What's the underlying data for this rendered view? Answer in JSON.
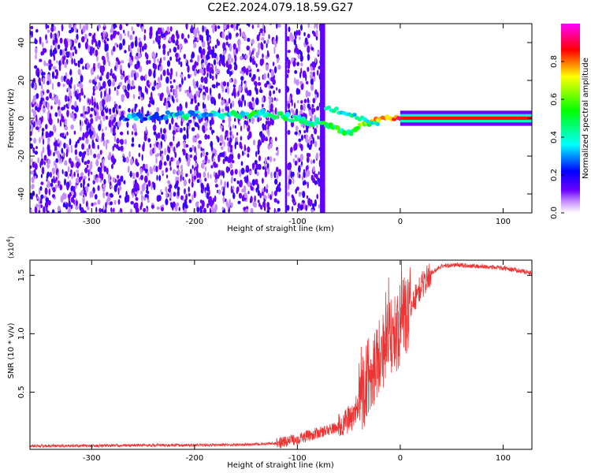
{
  "title": "C2E2.2024.079.18.59.G27",
  "chart_data": [
    {
      "type": "heatmap",
      "xlabel": "Height of straight line (km)",
      "ylabel": "Frequency (Hz)",
      "xlim": [
        -360,
        128
      ],
      "ylim": [
        -50,
        50
      ],
      "xticks": [
        -300,
        -200,
        -100,
        0,
        100
      ],
      "yticks": [
        -40,
        -20,
        0,
        20,
        40
      ],
      "colorbar": {
        "label": "Normalized spectral amplitude",
        "range": [
          0,
          1
        ],
        "ticks": [
          "0.0",
          "0.2",
          "0.4",
          "0.6",
          "0.8"
        ],
        "colors": [
          "#ffffff",
          "#c58cff",
          "#6a00ff",
          "#0000ff",
          "#00ffff",
          "#00ff00",
          "#ffff00",
          "#ff0000",
          "#ff00ff"
        ]
      },
      "features": {
        "noise_band_km": [
          -360,
          -75
        ],
        "noise_gap_km": [
          -117,
          -110
        ],
        "ridge": [
          {
            "x": -270,
            "freq": 0,
            "amp": 0.25
          },
          {
            "x": -230,
            "freq": 1.5,
            "amp": 0.35
          },
          {
            "x": -180,
            "freq": 2,
            "amp": 0.4
          },
          {
            "x": -130,
            "freq": 2.5,
            "amp": 0.45
          },
          {
            "x": -75,
            "freq": -3,
            "amp": 0.45
          },
          {
            "x": -50,
            "freq": -8,
            "amp": 0.5
          },
          {
            "x": -35,
            "freq": -3,
            "amp": 0.6
          },
          {
            "x": -20,
            "freq": -0.5,
            "amp": 0.75
          },
          {
            "x": 0,
            "freq": 0,
            "amp": 0.85
          },
          {
            "x": 128,
            "freq": 0,
            "amp": 0.9
          }
        ]
      }
    },
    {
      "type": "line",
      "xlabel": "Height of straight line (km)",
      "ylabel": "SNR (10 * v/v)",
      "y_multiplier": "(x10^4)",
      "xlim": [
        -360,
        128
      ],
      "ylim": [
        0.01,
        1.63
      ],
      "xticks": [
        -300,
        -200,
        -100,
        0,
        100
      ],
      "yticks": [
        0.5,
        1.0,
        1.5
      ],
      "ytick_labels": [
        "0.5",
        "1.0",
        "1.5"
      ],
      "color": "#ee3333",
      "series": [
        {
          "x": [
            -360,
            -300,
            -250,
            -200,
            -150,
            -120,
            -100,
            -80,
            -60,
            -45,
            -35,
            -25,
            -15,
            -5,
            5,
            20,
            30,
            40,
            55,
            70,
            90,
            110,
            128
          ],
          "y": [
            0.04,
            0.04,
            0.045,
            0.045,
            0.05,
            0.06,
            0.1,
            0.15,
            0.2,
            0.3,
            0.55,
            0.75,
            0.9,
            1.0,
            1.15,
            1.4,
            1.52,
            1.58,
            1.59,
            1.58,
            1.57,
            1.55,
            1.52
          ]
        }
      ]
    }
  ]
}
